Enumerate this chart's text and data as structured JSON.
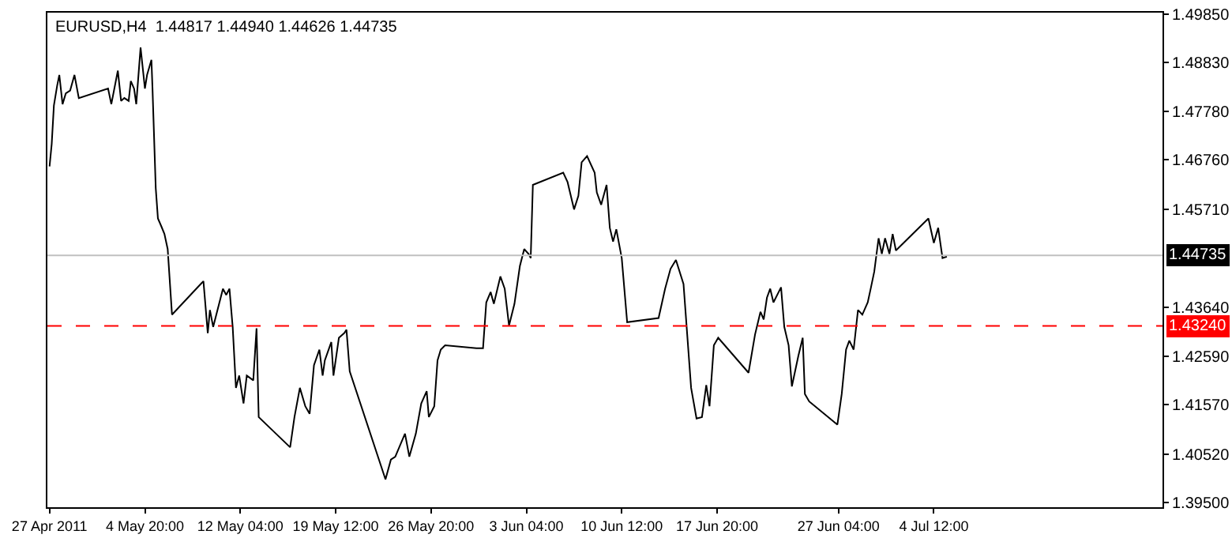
{
  "chart_data": {
    "type": "line",
    "title": "EURUSD,H4  1.44817 1.44940 1.44626 1.44735",
    "x": [
      "2011-04-27T12:00",
      "2011-04-27T16:00",
      "2011-04-27T20:00",
      "2011-04-28T02:00",
      "2011-04-28T06:00",
      "2011-04-28T12:00",
      "2011-04-28T18:00",
      "2011-04-29T02:00",
      "2011-04-29T10:00",
      "2011-04-29T18:00",
      "2011-05-02T00:00",
      "2011-05-02T06:00",
      "2011-05-02T18:00",
      "2011-05-03T00:00",
      "2011-05-03T06:00",
      "2011-05-03T14:00",
      "2011-05-03T18:00",
      "2011-05-04T00:00",
      "2011-05-04T04:00",
      "2011-05-04T12:00",
      "2011-05-04T20:00",
      "2011-05-05T00:00",
      "2011-05-05T08:00",
      "2011-05-05T10:00",
      "2011-05-05T16:00",
      "2011-05-05T20:00",
      "2011-05-06T02:00",
      "2011-05-06T08:00",
      "2011-05-06T14:00",
      "2011-05-06T22:00",
      "2011-05-09T08:00",
      "2011-05-09T16:00",
      "2011-05-09T20:00",
      "2011-05-10T02:00",
      "2011-05-10T10:00",
      "2011-05-10T20:00",
      "2011-05-11T02:00",
      "2011-05-11T08:00",
      "2011-05-11T14:00",
      "2011-05-11T20:00",
      "2011-05-12T02:00",
      "2011-05-12T10:00",
      "2011-05-12T16:00",
      "2011-05-13T04:00",
      "2011-05-13T10:00",
      "2011-05-13T14:00",
      "2011-05-16T00:00",
      "2011-05-16T08:00",
      "2011-05-16T18:00",
      "2011-05-17T04:00",
      "2011-05-17T12:00",
      "2011-05-17T20:00",
      "2011-05-18T06:00",
      "2011-05-18T12:00",
      "2011-05-18T16:00",
      "2011-05-19T04:00",
      "2011-05-19T08:00",
      "2011-05-19T18:00",
      "2011-05-20T04:00",
      "2011-05-20T08:00",
      "2011-05-20T14:00",
      "2011-05-23T08:00",
      "2011-05-23T18:00",
      "2011-05-24T02:00",
      "2011-05-24T20:00",
      "2011-05-25T04:00",
      "2011-05-25T16:00",
      "2011-05-26T02:00",
      "2011-05-26T12:00",
      "2011-05-26T16:00",
      "2011-05-27T02:00",
      "2011-05-27T08:00",
      "2011-05-27T14:00",
      "2011-05-27T22:00",
      "2011-05-30T08:00",
      "2011-05-30T20:00",
      "2011-05-31T02:00",
      "2011-05-31T10:00",
      "2011-05-31T16:00",
      "2011-06-01T04:00",
      "2011-06-01T12:00",
      "2011-06-01T20:00",
      "2011-06-02T06:00",
      "2011-06-02T16:00",
      "2011-06-03T00:00",
      "2011-06-03T08:00",
      "2011-06-03T12:00",
      "2011-06-03T16:00",
      "2011-06-06T00:00",
      "2011-06-06T08:00",
      "2011-06-06T20:00",
      "2011-06-07T04:00",
      "2011-06-07T10:00",
      "2011-06-07T20:00",
      "2011-06-08T10:00",
      "2011-06-08T14:00",
      "2011-06-08T22:00",
      "2011-06-09T08:00",
      "2011-06-09T14:00",
      "2011-06-09T20:00",
      "2011-06-10T02:00",
      "2011-06-10T12:00",
      "2011-06-10T22:00",
      "2011-06-13T08:00",
      "2011-06-13T20:00",
      "2011-06-14T06:00",
      "2011-06-14T16:00",
      "2011-06-15T06:00",
      "2011-06-15T20:00",
      "2011-06-16T06:00",
      "2011-06-16T16:00",
      "2011-06-17T00:00",
      "2011-06-17T06:00",
      "2011-06-17T14:00",
      "2011-06-17T22:00",
      "2011-06-20T06:00",
      "2011-06-20T18:00",
      "2011-06-21T04:00",
      "2011-06-21T10:00",
      "2011-06-21T16:00",
      "2011-06-21T22:00",
      "2011-06-22T04:00",
      "2011-06-22T18:00",
      "2011-06-23T00:00",
      "2011-06-23T08:00",
      "2011-06-23T14:00",
      "2011-06-24T02:00",
      "2011-06-24T10:00",
      "2011-06-24T14:00",
      "2011-06-24T22:00",
      "2011-06-27T02:00",
      "2011-06-27T10:00",
      "2011-06-27T18:00",
      "2011-06-28T00:00",
      "2011-06-28T08:00",
      "2011-06-28T16:00",
      "2011-06-29T00:00",
      "2011-06-29T10:00",
      "2011-06-29T16:00",
      "2011-06-29T22:00",
      "2011-06-30T06:00",
      "2011-06-30T12:00",
      "2011-06-30T18:00",
      "2011-07-01T02:00",
      "2011-07-01T08:00",
      "2011-07-01T14:00",
      "2011-07-04T02:00",
      "2011-07-04T12:00",
      "2011-07-04T20:00",
      "2011-07-05T04:00",
      "2011-07-05T12:00"
    ],
    "series": [
      {
        "color": "#000000",
        "values": [
          1.4662,
          1.471,
          1.4791,
          1.4833,
          1.4856,
          1.4794,
          1.4817,
          1.4823,
          1.4856,
          1.4807,
          1.4827,
          1.4794,
          1.4865,
          1.4801,
          1.4807,
          1.4801,
          1.4843,
          1.4827,
          1.4794,
          1.4914,
          1.4827,
          1.4856,
          1.4888,
          1.4827,
          1.4616,
          1.4552,
          1.4536,
          1.4519,
          1.4487,
          1.4348,
          1.4419,
          1.4309,
          1.4358,
          1.4322,
          1.4358,
          1.4403,
          1.439,
          1.4403,
          1.4322,
          1.4193,
          1.4219,
          1.416,
          1.4219,
          1.4209,
          1.4319,
          1.4131,
          1.4067,
          1.4131,
          1.4193,
          1.4154,
          1.4138,
          1.4241,
          1.4274,
          1.4219,
          1.4251,
          1.429,
          1.4219,
          1.4299,
          1.4309,
          1.4316,
          1.4228,
          1.3999,
          1.4041,
          1.4047,
          1.4096,
          1.4047,
          1.4096,
          1.416,
          1.4186,
          1.4131,
          1.4154,
          1.4251,
          1.4274,
          1.4283,
          1.4277,
          1.4277,
          1.4374,
          1.4396,
          1.4371,
          1.4429,
          1.4403,
          1.4325,
          1.4371,
          1.4451,
          1.4487,
          1.4477,
          1.4468,
          1.4623,
          1.4649,
          1.4629,
          1.4571,
          1.46,
          1.4671,
          1.4684,
          1.4649,
          1.4607,
          1.4581,
          1.4623,
          1.4532,
          1.4503,
          1.4529,
          1.4468,
          1.4332,
          1.4341,
          1.4403,
          1.4445,
          1.4464,
          1.4413,
          1.4193,
          1.4128,
          1.4131,
          1.4199,
          1.4154,
          1.4283,
          1.4299,
          1.4225,
          1.4306,
          1.4354,
          1.4338,
          1.4384,
          1.4403,
          1.4374,
          1.4406,
          1.4322,
          1.4283,
          1.4196,
          1.4261,
          1.4299,
          1.418,
          1.4164,
          1.4115,
          1.418,
          1.4274,
          1.4293,
          1.4274,
          1.4358,
          1.4348,
          1.4374,
          1.4406,
          1.4439,
          1.451,
          1.4477,
          1.451,
          1.4477,
          1.4519,
          1.4484,
          1.4552,
          1.45,
          1.4532,
          1.4468,
          1.4471
        ]
      }
    ],
    "xlim": [
      "2011-04-27T08:00",
      "2011-07-22T02:00"
    ],
    "ylim": [
      1.394,
      1.4988
    ],
    "xticks": [
      {
        "value": "2011-04-27T12:00",
        "label": "27 Apr 2011"
      },
      {
        "value": "2011-05-04T20:00",
        "label": "4 May 20:00"
      },
      {
        "value": "2011-05-12T04:00",
        "label": "12 May 04:00"
      },
      {
        "value": "2011-05-19T12:00",
        "label": "19 May 12:00"
      },
      {
        "value": "2011-05-26T20:00",
        "label": "26 May 20:00"
      },
      {
        "value": "2011-06-03T04:00",
        "label": "3 Jun 04:00"
      },
      {
        "value": "2011-06-10T12:00",
        "label": "10 Jun 12:00"
      },
      {
        "value": "2011-06-17T20:00",
        "label": "17 Jun 20:00"
      },
      {
        "value": "2011-06-27T04:00",
        "label": "27 Jun 04:00"
      },
      {
        "value": "2011-07-04T12:00",
        "label": "4 Jul 12:00"
      }
    ],
    "yticks": [
      {
        "value": 1.4985,
        "label": "1.49850"
      },
      {
        "value": 1.4883,
        "label": "1.48830"
      },
      {
        "value": 1.4778,
        "label": "1.47780"
      },
      {
        "value": 1.4676,
        "label": "1.46760"
      },
      {
        "value": 1.4571,
        "label": "1.45710"
      },
      {
        "value": 1.4364,
        "label": "1.43640"
      },
      {
        "value": 1.4259,
        "label": "1.42590"
      },
      {
        "value": 1.4157,
        "label": "1.41570"
      },
      {
        "value": 1.4052,
        "label": "1.40520"
      },
      {
        "value": 1.395,
        "label": "1.39500"
      }
    ],
    "ref_lines": [
      {
        "axis": "y",
        "value": 1.44735,
        "label": "1.44735",
        "color": "#c0c0c0",
        "line_style": "solid"
      },
      {
        "axis": "y",
        "value": 1.4324,
        "label": "1.43240",
        "color": "#ff0000",
        "line_style": "dashed"
      }
    ],
    "grid": false,
    "marker": "none",
    "line_style": "solid"
  }
}
